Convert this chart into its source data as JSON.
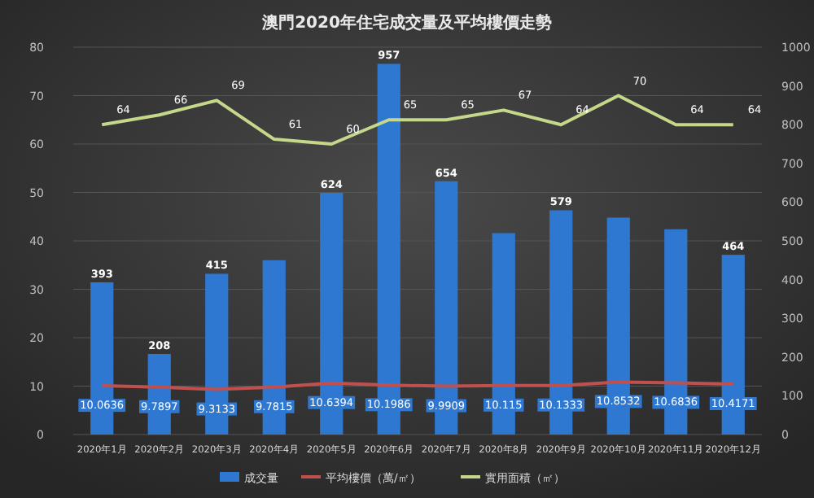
{
  "chart_data": {
    "type": "bar",
    "title": "澳門2020年住宅成交量及平均樓價走勢",
    "categories": [
      "2020年1月",
      "2020年2月",
      "2020年3月",
      "2020年4月",
      "2020年5月",
      "2020年6月",
      "2020年7月",
      "2020年8月",
      "2020年9月",
      "2020年10月",
      "2020年11月",
      "2020年12月"
    ],
    "series": [
      {
        "name": "成交量",
        "axis": "y2",
        "color": "#2f78d2",
        "values": [
          393,
          208,
          415,
          450,
          624,
          957,
          654,
          520,
          579,
          560,
          530,
          464
        ],
        "value_labels": [
          "393",
          "208",
          "415",
          null,
          "624",
          "957",
          "654",
          null,
          "579",
          null,
          null,
          "464"
        ]
      },
      {
        "name": "平均樓價（萬/㎡）",
        "type": "line",
        "color": "#c0504d",
        "values": [
          10.0636,
          9.7897,
          9.3133,
          9.7815,
          10.6394,
          10.1986,
          9.9909,
          10.115,
          10.1333,
          10.8532,
          10.6836,
          10.4171
        ]
      },
      {
        "name": "實用面積（㎡）",
        "type": "line",
        "color": "#c5d88a",
        "values": [
          64,
          66,
          69,
          61,
          60,
          65,
          65,
          67,
          64,
          70,
          64,
          64
        ]
      }
    ],
    "ylim": [
      0,
      80
    ],
    "yticks": [
      0,
      10,
      20,
      30,
      40,
      50,
      60,
      70,
      80
    ],
    "y2lim": [
      0,
      1000
    ],
    "y2ticks": [
      0,
      100,
      200,
      300,
      400,
      500,
      600,
      700,
      800,
      900,
      1000
    ],
    "grid": "y",
    "legend": "bottom",
    "data_labels": true,
    "marker": "none"
  }
}
